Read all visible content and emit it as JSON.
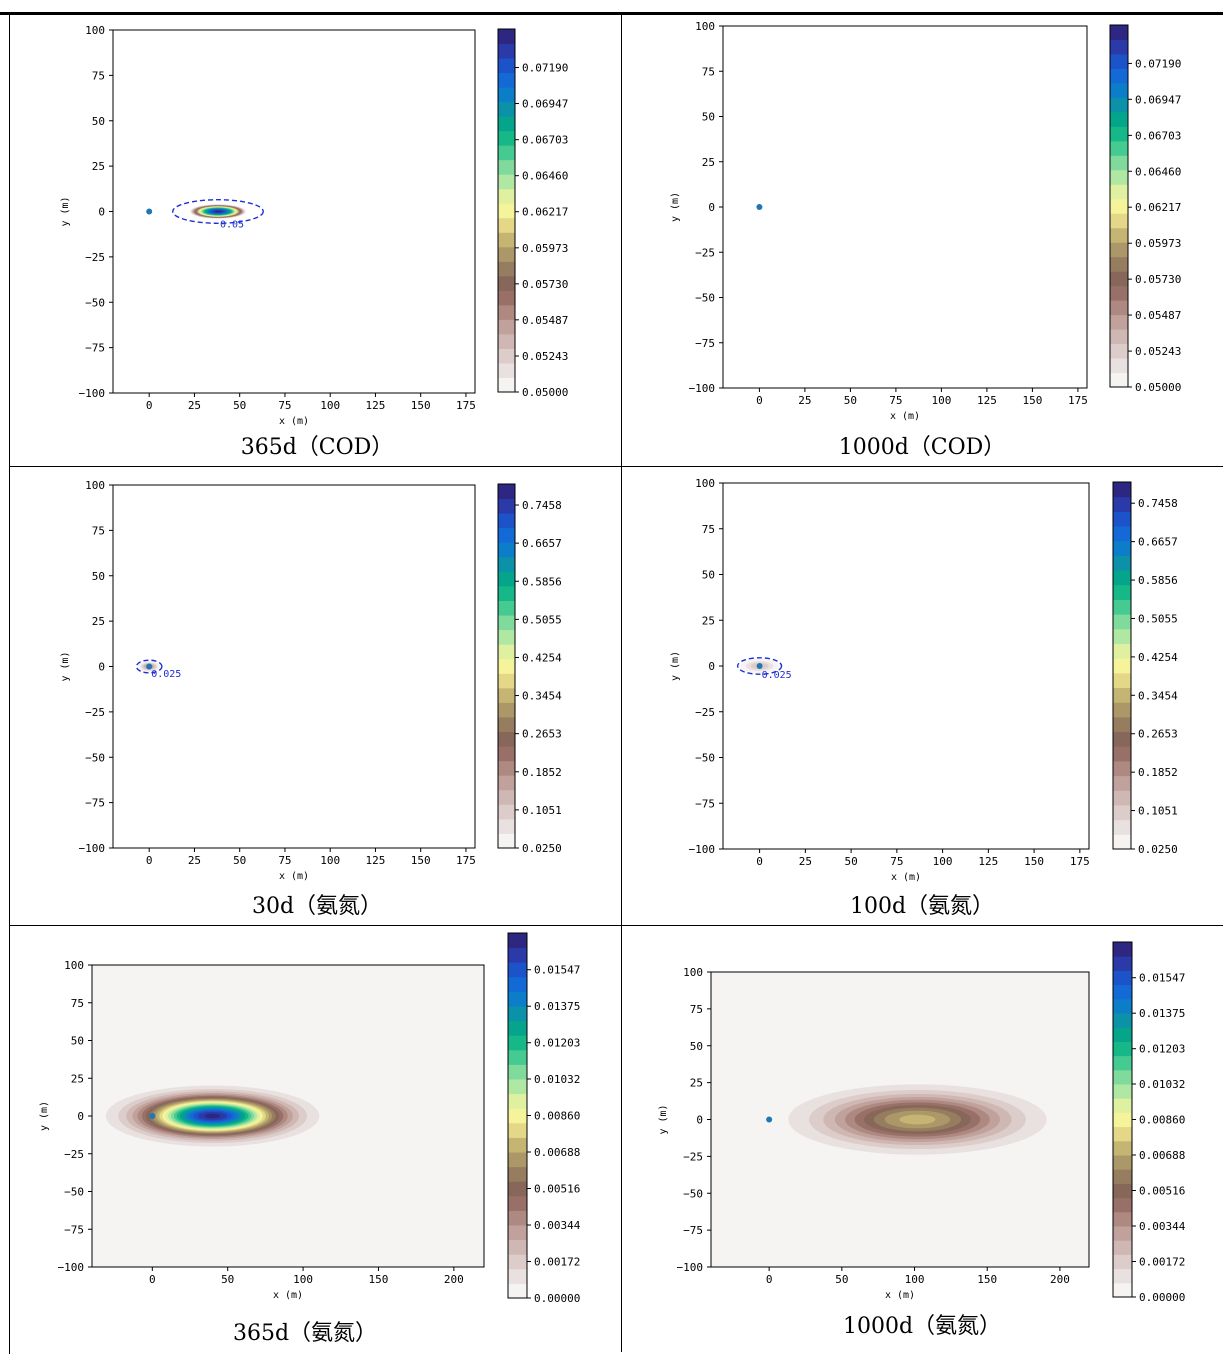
{
  "colors": {
    "colormap": [
      "#f5f4f2",
      "#e9e1df",
      "#dccdca",
      "#cfb8b4",
      "#c1a19c",
      "#ae8981",
      "#987067",
      "#87675a",
      "#967d5f",
      "#ac9768",
      "#c5b573",
      "#e4d888",
      "#f6f49a",
      "#dff0a1",
      "#b0e8a3",
      "#80da9c",
      "#45ca92",
      "#16b888",
      "#05a58b",
      "#0b92a8",
      "#0c7ec9",
      "#136ad6",
      "#1d53c8",
      "#2a3aa8",
      "#2d2781"
    ],
    "contour": "#1f2fd6",
    "source_point": "#1f77b4"
  },
  "chart_data": [
    {
      "type": "heatmap",
      "caption": "365d（COD）",
      "xlabel": "x (m)",
      "ylabel": "y (m)",
      "xlim": [
        -20,
        180
      ],
      "ylim": [
        -100,
        100
      ],
      "xticks": [
        0,
        25,
        50,
        75,
        100,
        125,
        150,
        175
      ],
      "yticks": [
        100,
        75,
        50,
        25,
        0,
        -25,
        -50,
        -75,
        -100
      ],
      "plume": {
        "cx": 38,
        "cy": 0,
        "sx": 17.5,
        "sy": 4.5,
        "peak": 0.0738
      },
      "vmin": 0.05,
      "vmax": 0.0745,
      "colorbar_ticks": [
        "0.05000",
        "0.05243",
        "0.05487",
        "0.05730",
        "0.05973",
        "0.06217",
        "0.06460",
        "0.06703",
        "0.06947",
        "0.07190"
      ],
      "contour": {
        "level": 0.05,
        "label": "0.05",
        "cx": 38,
        "cy": 0,
        "rx": 25,
        "ry": 6.5
      },
      "source": {
        "x": 0,
        "y": 0
      },
      "background_fill": false
    },
    {
      "type": "heatmap",
      "caption": "1000d（COD）",
      "xlabel": "x (m)",
      "ylabel": "y (m)",
      "xlim": [
        -20,
        180
      ],
      "ylim": [
        -100,
        100
      ],
      "xticks": [
        0,
        25,
        50,
        75,
        100,
        125,
        150,
        175
      ],
      "yticks": [
        100,
        75,
        50,
        25,
        0,
        -25,
        -50,
        -75,
        -100
      ],
      "plume": null,
      "vmin": 0.05,
      "vmax": 0.0745,
      "colorbar_ticks": [
        "0.05000",
        "0.05243",
        "0.05487",
        "0.05730",
        "0.05973",
        "0.06217",
        "0.06460",
        "0.06703",
        "0.06947",
        "0.07190"
      ],
      "contour": null,
      "source": {
        "x": 0,
        "y": 0
      },
      "background_fill": false
    },
    {
      "type": "heatmap",
      "caption": "30d（氨氮）",
      "xlabel": "x (m)",
      "ylabel": "y (m)",
      "xlim": [
        -20,
        180
      ],
      "ylim": [
        -100,
        100
      ],
      "xticks": [
        0,
        25,
        50,
        75,
        100,
        125,
        150,
        175
      ],
      "yticks": [
        100,
        75,
        50,
        25,
        0,
        -25,
        -50,
        -75,
        -100
      ],
      "plume": {
        "cx": 0,
        "cy": 0,
        "sx": 3.0,
        "sy": 1.5,
        "peak": 0.2
      },
      "vmin": 0.025,
      "vmax": 0.79,
      "colorbar_ticks": [
        "0.0250",
        "0.1051",
        "0.1852",
        "0.2653",
        "0.3454",
        "0.4254",
        "0.5055",
        "0.5856",
        "0.6657",
        "0.7458"
      ],
      "contour": {
        "level": 0.025,
        "label": "0.025",
        "cx": 0,
        "cy": 0,
        "rx": 7,
        "ry": 3.5
      },
      "source": {
        "x": 0,
        "y": 0
      },
      "background_fill": false
    },
    {
      "type": "heatmap",
      "caption": "100d（氨氮）",
      "xlabel": "x (m)",
      "ylabel": "y (m)",
      "xlim": [
        -20,
        180
      ],
      "ylim": [
        -100,
        100
      ],
      "xticks": [
        0,
        25,
        50,
        75,
        100,
        125,
        150,
        175
      ],
      "yticks": [
        100,
        75,
        50,
        25,
        0,
        -25,
        -50,
        -75,
        -100
      ],
      "plume": {
        "cx": 0,
        "cy": 0,
        "sx": 6.0,
        "sy": 2.2,
        "peak": 0.12
      },
      "vmin": 0.025,
      "vmax": 0.79,
      "colorbar_ticks": [
        "0.0250",
        "0.1051",
        "0.1852",
        "0.2653",
        "0.3454",
        "0.4254",
        "0.5055",
        "0.5856",
        "0.6657",
        "0.7458"
      ],
      "contour": {
        "level": 0.025,
        "label": "0.025",
        "cx": 0,
        "cy": 0,
        "rx": 12,
        "ry": 4.5
      },
      "source": {
        "x": 0,
        "y": 0
      },
      "background_fill": false
    },
    {
      "type": "heatmap",
      "caption": "365d（氨氮）",
      "xlabel": "x (m)",
      "ylabel": "y (m)",
      "xlim": [
        -40,
        220
      ],
      "ylim": [
        -100,
        100
      ],
      "xticks": [
        0,
        50,
        100,
        150,
        200
      ],
      "yticks": [
        100,
        75,
        50,
        25,
        0,
        -25,
        -50,
        -75,
        -100
      ],
      "plume": {
        "cx": 40,
        "cy": 0,
        "sx": 28,
        "sy": 8,
        "peak": 0.0168
      },
      "vmin": 0.0,
      "vmax": 0.0172,
      "colorbar_ticks": [
        "0.00000",
        "0.00172",
        "0.00344",
        "0.00516",
        "0.00688",
        "0.00860",
        "0.01032",
        "0.01203",
        "0.01375",
        "0.01547"
      ],
      "contour": null,
      "source": {
        "x": 0,
        "y": 0
      },
      "background_fill": true
    },
    {
      "type": "heatmap",
      "caption": "1000d（氨氮）",
      "xlabel": "x (m)",
      "ylabel": "y (m)",
      "xlim": [
        -40,
        220
      ],
      "ylim": [
        -100,
        100
      ],
      "xticks": [
        0,
        50,
        100,
        150,
        200
      ],
      "yticks": [
        100,
        75,
        50,
        25,
        0,
        -25,
        -50,
        -75,
        -100
      ],
      "plume": {
        "cx": 102,
        "cy": 0,
        "sx": 41,
        "sy": 11,
        "peak": 0.0072
      },
      "vmin": 0.0,
      "vmax": 0.0172,
      "colorbar_ticks": [
        "0.00000",
        "0.00172",
        "0.00344",
        "0.00516",
        "0.00688",
        "0.00860",
        "0.01032",
        "0.01203",
        "0.01375",
        "0.01547"
      ],
      "contour": null,
      "source": {
        "x": 0,
        "y": 0
      },
      "background_fill": true
    }
  ]
}
